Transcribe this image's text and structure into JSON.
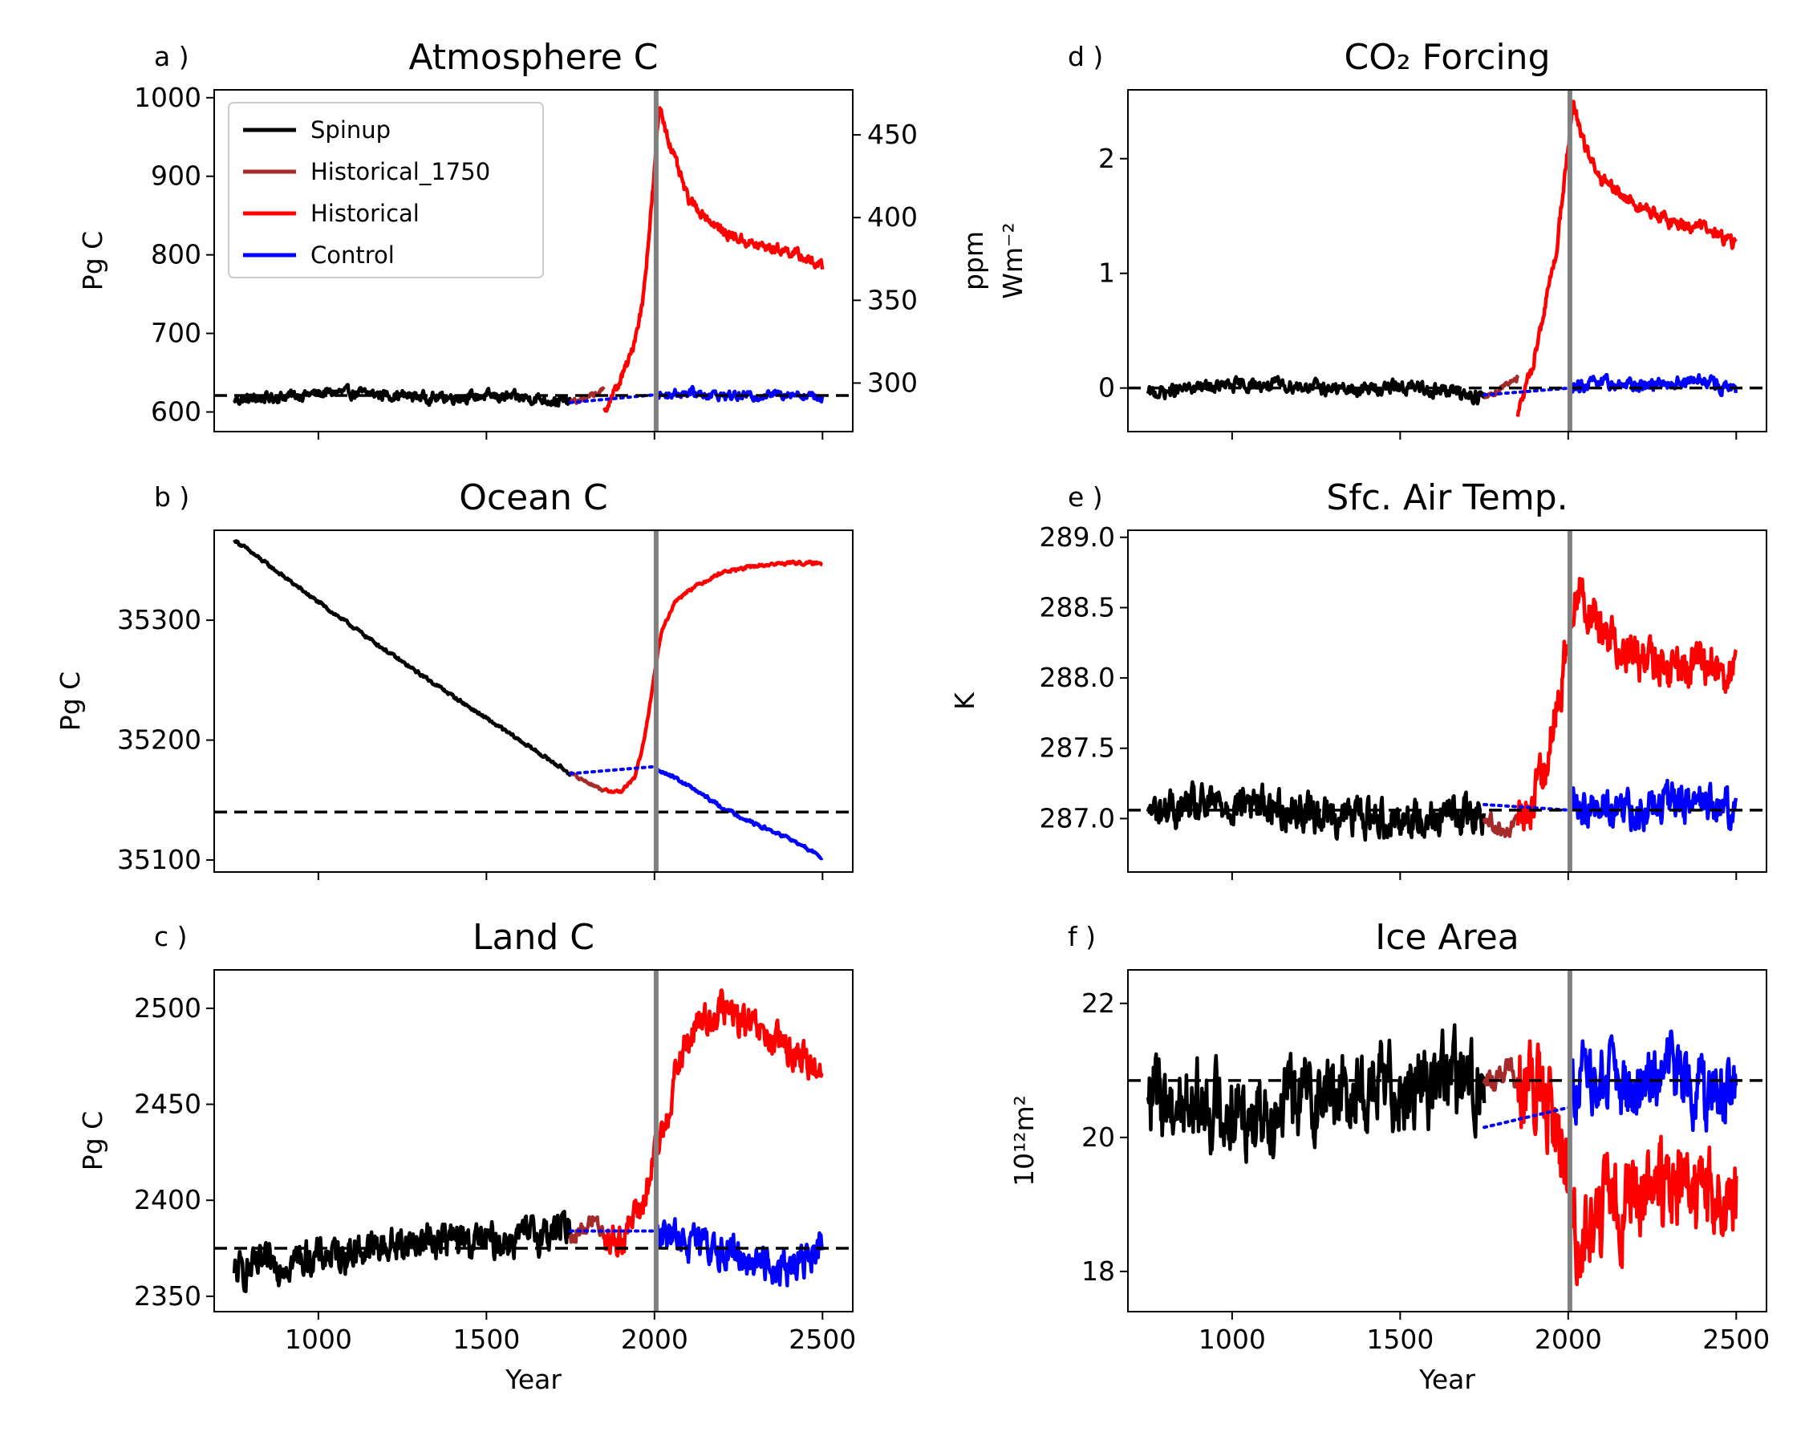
{
  "chart_data": [
    {
      "panel": "a )",
      "type": "line",
      "title": "Atmosphere C",
      "xlabel": "",
      "ylabel": "Pg C",
      "ylabel_right": "ppm",
      "xlim": [
        690,
        2590
      ],
      "ylim": [
        575,
        1010
      ],
      "xticks": [
        "1000",
        "1500",
        "2000",
        "2500"
      ],
      "yticks": [
        "600",
        "700",
        "800",
        "900",
        "1000"
      ],
      "yticks_right": [
        "300",
        "350",
        "400",
        "450"
      ],
      "right_axis_values": [
        300,
        350,
        400,
        450
      ],
      "right_axis_left_equivalent": [
        636.8,
        742.1,
        847.4,
        952.7
      ],
      "reference_line": 621,
      "vertical_line_x": 2005,
      "legend": {
        "position": "upper-left",
        "entries": [
          {
            "label": "Spinup",
            "color": "#000000"
          },
          {
            "label": "Historical_1750",
            "color": "#a52a2a"
          },
          {
            "label": "Historical",
            "color": "#ff0000"
          },
          {
            "label": "Control",
            "color": "#0000ff"
          }
        ]
      },
      "series": [
        {
          "color": "#000000",
          "x": [
            750,
            900,
            1050,
            1200,
            1350,
            1500,
            1650,
            1750
          ],
          "y": [
            615,
            620,
            625,
            622,
            618,
            620,
            617,
            612
          ]
        },
        {
          "color": "#a52a2a",
          "x": [
            1750,
            1790,
            1820,
            1850
          ],
          "y": [
            612,
            616,
            622,
            628
          ]
        },
        {
          "color": "#ff0000",
          "x": [
            1850,
            1890,
            1930,
            1965,
            1995,
            2015,
            2050,
            2100,
            2200,
            2300,
            2400,
            2500
          ],
          "y": [
            602,
            632,
            672,
            740,
            880,
            990,
            935,
            870,
            830,
            812,
            805,
            785
          ]
        },
        {
          "color": "#0000ff",
          "x": [
            2005,
            2100,
            2200,
            2300,
            2400,
            2500
          ],
          "y": [
            622,
            625,
            621,
            620,
            624,
            618
          ]
        },
        {
          "color": "#0000ff",
          "style": "dotted",
          "x": [
            1750,
            2005
          ],
          "y": [
            612,
            622
          ]
        }
      ]
    },
    {
      "panel": "b )",
      "type": "line",
      "title": "Ocean C",
      "xlabel": "",
      "ylabel": "Pg C",
      "xlim": [
        690,
        2590
      ],
      "ylim": [
        35090,
        35375
      ],
      "xticks": [
        "1000",
        "1500",
        "2000",
        "2500"
      ],
      "yticks": [
        "35100",
        "35200",
        "35300"
      ],
      "reference_line": 35140,
      "vertical_line_x": 2005,
      "series": [
        {
          "color": "#000000",
          "x": [
            750,
            1000,
            1250,
            1500,
            1750
          ],
          "y": [
            35367,
            35315,
            35265,
            35218,
            35172
          ]
        },
        {
          "color": "#a52a2a",
          "x": [
            1750,
            1800,
            1850
          ],
          "y": [
            35172,
            35165,
            35158
          ]
        },
        {
          "color": "#ff0000",
          "x": [
            1850,
            1900,
            1940,
            1970,
            2000,
            2020,
            2060,
            2100,
            2200,
            2300,
            2400,
            2500
          ],
          "y": [
            35158,
            35157,
            35168,
            35200,
            35255,
            35290,
            35315,
            35325,
            35340,
            35345,
            35348,
            35347
          ]
        },
        {
          "color": "#0000ff",
          "x": [
            2005,
            2100,
            2200,
            2300,
            2400,
            2500
          ],
          "y": [
            35177,
            35162,
            35144,
            35130,
            35118,
            35102
          ]
        },
        {
          "color": "#0000ff",
          "style": "dotted",
          "x": [
            1750,
            2005
          ],
          "y": [
            35172,
            35178
          ]
        }
      ]
    },
    {
      "panel": "c )",
      "type": "line",
      "title": "Land C",
      "xlabel": "Year",
      "ylabel": "Pg C",
      "xlim": [
        690,
        2590
      ],
      "ylim": [
        2342,
        2520
      ],
      "xticks": [
        "1000",
        "1500",
        "2000",
        "2500"
      ],
      "yticks": [
        "2350",
        "2400",
        "2450",
        "2500"
      ],
      "reference_line": 2375,
      "vertical_line_x": 2005,
      "series": [
        {
          "color": "#000000",
          "x": [
            750,
            900,
            1050,
            1200,
            1350,
            1500,
            1650,
            1750
          ],
          "y": [
            2362,
            2368,
            2372,
            2376,
            2380,
            2378,
            2382,
            2386
          ]
        },
        {
          "color": "#a52a2a",
          "x": [
            1750,
            1790,
            1820,
            1850
          ],
          "y": [
            2382,
            2385,
            2390,
            2384
          ]
        },
        {
          "color": "#ff0000",
          "x": [
            1850,
            1890,
            1930,
            1970,
            2000,
            2030,
            2070,
            2120,
            2200,
            2300,
            2400,
            2500
          ],
          "y": [
            2382,
            2378,
            2388,
            2400,
            2420,
            2440,
            2470,
            2490,
            2500,
            2488,
            2478,
            2468
          ]
        },
        {
          "color": "#0000ff",
          "x": [
            2005,
            2100,
            2200,
            2300,
            2400,
            2500
          ],
          "y": [
            2384,
            2378,
            2374,
            2368,
            2365,
            2374
          ]
        },
        {
          "color": "#0000ff",
          "style": "dotted",
          "x": [
            1750,
            2005
          ],
          "y": [
            2384,
            2384
          ]
        }
      ]
    },
    {
      "panel": "d )",
      "type": "line",
      "title": "CO₂ Forcing",
      "xlabel": "",
      "ylabel": "Wm⁻²",
      "xlim": [
        690,
        2590
      ],
      "ylim": [
        -0.38,
        2.6
      ],
      "xticks": [
        "1000",
        "1500",
        "2000",
        "2500"
      ],
      "yticks": [
        "0",
        "1",
        "2"
      ],
      "reference_line": 0,
      "vertical_line_x": 2005,
      "series": [
        {
          "color": "#000000",
          "x": [
            750,
            900,
            1050,
            1200,
            1350,
            1500,
            1650,
            1750
          ],
          "y": [
            -0.05,
            0.0,
            0.03,
            0.02,
            -0.02,
            0.01,
            -0.03,
            -0.08
          ]
        },
        {
          "color": "#a52a2a",
          "x": [
            1750,
            1790,
            1820,
            1850
          ],
          "y": [
            -0.08,
            -0.02,
            0.05,
            0.1
          ]
        },
        {
          "color": "#ff0000",
          "x": [
            1850,
            1890,
            1930,
            1965,
            1995,
            2015,
            2050,
            2100,
            2200,
            2300,
            2400,
            2500
          ],
          "y": [
            -0.25,
            0.15,
            0.7,
            1.2,
            2.0,
            2.45,
            2.1,
            1.8,
            1.6,
            1.45,
            1.4,
            1.25
          ]
        },
        {
          "color": "#0000ff",
          "x": [
            2005,
            2100,
            2200,
            2300,
            2400,
            2500
          ],
          "y": [
            0.0,
            0.04,
            0.02,
            0.05,
            0.06,
            -0.02
          ]
        },
        {
          "color": "#0000ff",
          "style": "dotted",
          "x": [
            1750,
            2005
          ],
          "y": [
            -0.06,
            0.0
          ]
        }
      ]
    },
    {
      "panel": "e )",
      "type": "line",
      "title": "Sfc. Air Temp.",
      "xlabel": "",
      "ylabel": "K",
      "xlim": [
        690,
        2590
      ],
      "ylim": [
        286.62,
        289.05
      ],
      "xticks": [
        "1000",
        "1500",
        "2000",
        "2500"
      ],
      "yticks": [
        "287.0",
        "287.5",
        "288.0",
        "288.5",
        "289.0"
      ],
      "reference_line": 287.06,
      "vertical_line_x": 2005,
      "series": [
        {
          "color": "#000000",
          "x": [
            750,
            900,
            1050,
            1200,
            1350,
            1500,
            1650,
            1750
          ],
          "y": [
            287.05,
            287.08,
            287.12,
            287.05,
            287.02,
            287.0,
            287.03,
            287.05
          ]
        },
        {
          "color": "#a52a2a",
          "x": [
            1750,
            1790,
            1820,
            1850
          ],
          "y": [
            287.0,
            286.95,
            286.9,
            286.98
          ]
        },
        {
          "color": "#ff0000",
          "x": [
            1850,
            1890,
            1930,
            1970,
            2000,
            2020,
            2050,
            2100,
            2200,
            2300,
            2400,
            2500
          ],
          "y": [
            286.95,
            287.1,
            287.4,
            287.8,
            288.3,
            288.65,
            288.55,
            288.35,
            288.15,
            288.05,
            288.1,
            288.05
          ]
        },
        {
          "color": "#0000ff",
          "x": [
            2005,
            2100,
            2200,
            2300,
            2400,
            2500
          ],
          "y": [
            287.05,
            287.1,
            287.05,
            287.1,
            287.12,
            287.05
          ]
        },
        {
          "color": "#0000ff",
          "style": "dotted",
          "x": [
            1750,
            2005
          ],
          "y": [
            287.1,
            287.06
          ]
        }
      ]
    },
    {
      "panel": "f )",
      "type": "line",
      "title": "Ice Area",
      "xlabel": "Year",
      "ylabel": "10¹²m²",
      "xlim": [
        690,
        2590
      ],
      "ylim": [
        17.4,
        22.5
      ],
      "xticks": [
        "1000",
        "1500",
        "2000",
        "2500"
      ],
      "yticks": [
        "18",
        "20",
        "22"
      ],
      "reference_line": 20.85,
      "vertical_line_x": 2005,
      "series": [
        {
          "color": "#000000",
          "x": [
            750,
            900,
            1050,
            1200,
            1350,
            1500,
            1650,
            1750
          ],
          "y": [
            20.6,
            20.5,
            20.4,
            20.6,
            20.7,
            20.8,
            20.9,
            20.8
          ]
        },
        {
          "color": "#a52a2a",
          "x": [
            1750,
            1790,
            1820,
            1850
          ],
          "y": [
            20.8,
            20.9,
            21.0,
            20.9
          ]
        },
        {
          "color": "#ff0000",
          "x": [
            1850,
            1890,
            1930,
            1970,
            2000,
            2030,
            2070,
            2150,
            2250,
            2350,
            2450,
            2500
          ],
          "y": [
            20.9,
            20.7,
            20.5,
            20.1,
            19.3,
            18.5,
            18.8,
            19.0,
            19.2,
            19.3,
            19.0,
            19.1
          ]
        },
        {
          "color": "#0000ff",
          "x": [
            2005,
            2100,
            2200,
            2300,
            2400,
            2500
          ],
          "y": [
            20.8,
            20.8,
            20.7,
            20.9,
            20.7,
            20.6
          ]
        },
        {
          "color": "#0000ff",
          "style": "dotted",
          "x": [
            1750,
            2005
          ],
          "y": [
            20.15,
            20.45
          ]
        }
      ]
    }
  ]
}
